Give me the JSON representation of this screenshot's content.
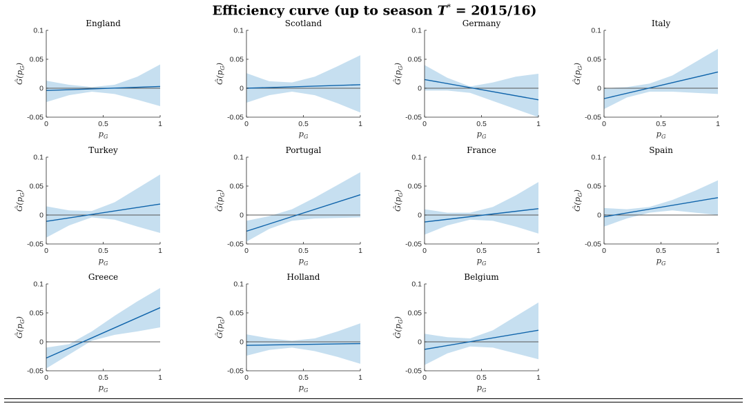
{
  "figure": {
    "title_prefix": "Efficiency curve (up to season ",
    "title_var": "T",
    "title_sup": "*",
    "title_suffix": " = 2015/16)"
  },
  "labels": {
    "xlabel": "p",
    "xlabel_sub": "G",
    "ylabel": "Ĝ(p",
    "ylabel_sub": "G",
    "ylabel_close": ")"
  },
  "colors": {
    "band": "#c6dff0",
    "line": "#0e63aa",
    "zero": "#555555",
    "axis": "#262626"
  },
  "chart_data": [
    {
      "type": "line",
      "title": "England",
      "x": [
        0,
        1
      ],
      "y": [
        -0.004,
        0.003
      ],
      "band_lower": [
        -0.024,
        -0.012,
        -0.006,
        -0.01,
        -0.02,
        -0.031
      ],
      "band_upper": [
        0.013,
        0.006,
        0.002,
        0.006,
        0.02,
        0.041
      ],
      "band_x": [
        0,
        0.2,
        0.4,
        0.6,
        0.8,
        1
      ],
      "xlim": [
        0,
        1
      ],
      "ylim": [
        -0.05,
        0.1
      ],
      "xticks": [
        "0",
        "0.5",
        "1"
      ],
      "yticks": [
        "-0.05",
        "0",
        "0.05",
        "0.1"
      ]
    },
    {
      "type": "line",
      "title": "Scotland",
      "x": [
        0,
        1
      ],
      "y": [
        0.0,
        0.006
      ],
      "band_lower": [
        -0.025,
        -0.012,
        -0.006,
        -0.012,
        -0.026,
        -0.042
      ],
      "band_upper": [
        0.026,
        0.012,
        0.01,
        0.02,
        0.038,
        0.057
      ],
      "band_x": [
        0,
        0.2,
        0.4,
        0.6,
        0.8,
        1
      ],
      "xlim": [
        0,
        1
      ],
      "ylim": [
        -0.05,
        0.1
      ],
      "xticks": [
        "0",
        "0.5",
        "1"
      ],
      "yticks": [
        "-0.05",
        "0",
        "0.05",
        "0.1"
      ]
    },
    {
      "type": "line",
      "title": "Germany",
      "x": [
        0,
        1
      ],
      "y": [
        0.015,
        -0.02
      ],
      "band_lower": [
        -0.004,
        -0.004,
        -0.008,
        -0.022,
        -0.036,
        -0.05
      ],
      "band_upper": [
        0.04,
        0.018,
        0.003,
        0.01,
        0.02,
        0.025
      ],
      "band_x": [
        0,
        0.2,
        0.4,
        0.6,
        0.8,
        1
      ],
      "xlim": [
        0,
        1
      ],
      "ylim": [
        -0.05,
        0.1
      ],
      "xticks": [
        "0",
        "0.5",
        "1"
      ],
      "yticks": [
        "-0.05",
        "0",
        "0.05",
        "0.1"
      ]
    },
    {
      "type": "line",
      "title": "Italy",
      "x": [
        0,
        1
      ],
      "y": [
        -0.018,
        0.028
      ],
      "band_lower": [
        -0.036,
        -0.016,
        -0.006,
        -0.006,
        -0.008,
        -0.01
      ],
      "band_upper": [
        0.0,
        0.002,
        0.008,
        0.022,
        0.045,
        0.068
      ],
      "band_x": [
        0,
        0.2,
        0.4,
        0.6,
        0.8,
        1
      ],
      "xlim": [
        0,
        1
      ],
      "ylim": [
        -0.05,
        0.1
      ],
      "xticks": [
        "0",
        "0.5",
        "1"
      ],
      "yticks": [
        "-0.05",
        "0",
        "0.05",
        "0.1"
      ]
    },
    {
      "type": "line",
      "title": "Turkey",
      "x": [
        0,
        1
      ],
      "y": [
        -0.011,
        0.019
      ],
      "band_lower": [
        -0.039,
        -0.018,
        -0.004,
        -0.008,
        -0.02,
        -0.031
      ],
      "band_upper": [
        0.015,
        0.008,
        0.007,
        0.022,
        0.046,
        0.07
      ],
      "band_x": [
        0,
        0.2,
        0.4,
        0.6,
        0.8,
        1
      ],
      "xlim": [
        0,
        1
      ],
      "ylim": [
        -0.05,
        0.1
      ],
      "xticks": [
        "0",
        "0.5",
        "1"
      ],
      "yticks": [
        "-0.05",
        "0",
        "0.05",
        "0.1"
      ]
    },
    {
      "type": "line",
      "title": "Portugal",
      "x": [
        0,
        1
      ],
      "y": [
        -0.028,
        0.035
      ],
      "band_lower": [
        -0.046,
        -0.024,
        -0.01,
        -0.006,
        -0.005,
        -0.004
      ],
      "band_upper": [
        -0.01,
        -0.002,
        0.01,
        0.03,
        0.052,
        0.074
      ],
      "band_x": [
        0,
        0.2,
        0.4,
        0.6,
        0.8,
        1
      ],
      "xlim": [
        0,
        1
      ],
      "ylim": [
        -0.05,
        0.1
      ],
      "xticks": [
        "0",
        "0.5",
        "1"
      ],
      "yticks": [
        "-0.05",
        "0",
        "0.05",
        "0.1"
      ]
    },
    {
      "type": "line",
      "title": "France",
      "x": [
        0,
        1
      ],
      "y": [
        -0.012,
        0.011
      ],
      "band_lower": [
        -0.034,
        -0.018,
        -0.008,
        -0.01,
        -0.02,
        -0.032
      ],
      "band_upper": [
        0.01,
        0.004,
        0.004,
        0.014,
        0.034,
        0.057
      ],
      "band_x": [
        0,
        0.2,
        0.4,
        0.6,
        0.8,
        1
      ],
      "xlim": [
        0,
        1
      ],
      "ylim": [
        -0.05,
        0.1
      ],
      "xticks": [
        "0",
        "0.5",
        "1"
      ],
      "yticks": [
        "-0.05",
        "0",
        "0.05",
        "0.1"
      ]
    },
    {
      "type": "line",
      "title": "Spain",
      "x": [
        0,
        1
      ],
      "y": [
        -0.003,
        0.03
      ],
      "band_lower": [
        -0.02,
        -0.006,
        0.004,
        0.008,
        0.004,
        0.0
      ],
      "band_upper": [
        0.012,
        0.01,
        0.014,
        0.026,
        0.042,
        0.06
      ],
      "band_x": [
        0,
        0.2,
        0.4,
        0.6,
        0.8,
        1
      ],
      "xlim": [
        0,
        1
      ],
      "ylim": [
        -0.05,
        0.1
      ],
      "xticks": [
        "0",
        "0.5",
        "1"
      ],
      "yticks": [
        "-0.05",
        "0",
        "0.05",
        "0.1"
      ]
    },
    {
      "type": "line",
      "title": "Greece",
      "x": [
        0,
        1
      ],
      "y": [
        -0.028,
        0.059
      ],
      "band_lower": [
        -0.046,
        -0.022,
        0.002,
        0.012,
        0.018,
        0.025
      ],
      "band_upper": [
        -0.01,
        -0.004,
        0.018,
        0.045,
        0.07,
        0.093
      ],
      "band_x": [
        0,
        0.2,
        0.4,
        0.6,
        0.8,
        1
      ],
      "xlim": [
        0,
        1
      ],
      "ylim": [
        -0.05,
        0.1
      ],
      "xticks": [
        "0",
        "0.5",
        "1"
      ],
      "yticks": [
        "-0.05",
        "0",
        "0.05",
        "0.1"
      ]
    },
    {
      "type": "line",
      "title": "Holland",
      "x": [
        0,
        1
      ],
      "y": [
        -0.006,
        -0.003
      ],
      "band_lower": [
        -0.024,
        -0.014,
        -0.01,
        -0.016,
        -0.026,
        -0.038
      ],
      "band_upper": [
        0.013,
        0.006,
        0.002,
        0.006,
        0.018,
        0.032
      ],
      "band_x": [
        0,
        0.2,
        0.4,
        0.6,
        0.8,
        1
      ],
      "xlim": [
        0,
        1
      ],
      "ylim": [
        -0.05,
        0.1
      ],
      "xticks": [
        "0",
        "0.5",
        "1"
      ],
      "yticks": [
        "-0.05",
        "0",
        "0.05",
        "0.1"
      ]
    },
    {
      "type": "line",
      "title": "Belgium",
      "x": [
        0,
        1
      ],
      "y": [
        -0.013,
        0.02
      ],
      "band_lower": [
        -0.04,
        -0.02,
        -0.008,
        -0.01,
        -0.02,
        -0.03
      ],
      "band_upper": [
        0.014,
        0.008,
        0.006,
        0.02,
        0.044,
        0.068
      ],
      "band_x": [
        0,
        0.2,
        0.4,
        0.6,
        0.8,
        1
      ],
      "xlim": [
        0,
        1
      ],
      "ylim": [
        -0.05,
        0.1
      ],
      "xticks": [
        "0",
        "0.5",
        "1"
      ],
      "yticks": [
        "-0.05",
        "0",
        "0.05",
        "0.1"
      ]
    }
  ]
}
